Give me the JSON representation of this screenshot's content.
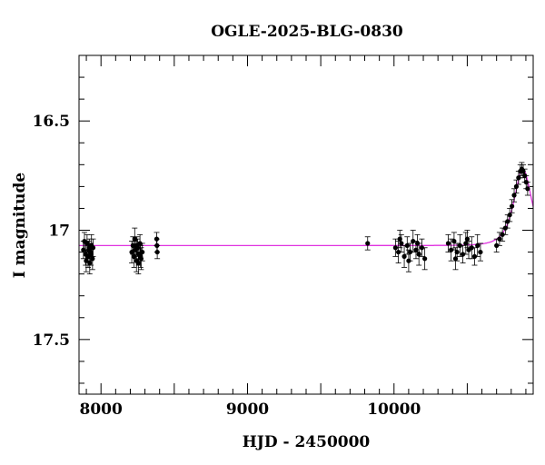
{
  "chart_data": {
    "type": "scatter",
    "title": "OGLE-2025-BLG-0830",
    "xlabel": "HJD - 2450000",
    "ylabel": "I magnitude",
    "xlim": [
      7850,
      10950
    ],
    "ylim": [
      17.75,
      16.2
    ],
    "y_inverted": true,
    "x_ticks": [
      8000,
      9000,
      10000
    ],
    "y_ticks": [
      16.5,
      17,
      17.5
    ],
    "colors": {
      "points": "#000000",
      "model": "#e033e0",
      "frame": "#000000"
    },
    "model": {
      "baseline": 17.07,
      "peak_mag": 16.72,
      "t0": 10880,
      "tE": 75
    },
    "series": [
      {
        "points": [
          {
            "x": 7880,
            "y": 17.09,
            "err": 0.04
          },
          {
            "x": 7895,
            "y": 17.11,
            "err": 0.05
          },
          {
            "x": 7905,
            "y": 17.06,
            "err": 0.04
          },
          {
            "x": 7912,
            "y": 17.12,
            "err": 0.05
          },
          {
            "x": 7920,
            "y": 17.08,
            "err": 0.04
          },
          {
            "x": 7928,
            "y": 17.1,
            "err": 0.04
          },
          {
            "x": 7935,
            "y": 17.07,
            "err": 0.05
          },
          {
            "x": 7942,
            "y": 17.13,
            "err": 0.05
          },
          {
            "x": 7887,
            "y": 17.05,
            "err": 0.04
          },
          {
            "x": 7899,
            "y": 17.14,
            "err": 0.05
          },
          {
            "x": 7916,
            "y": 17.09,
            "err": 0.04
          },
          {
            "x": 7931,
            "y": 17.11,
            "err": 0.05
          },
          {
            "x": 7946,
            "y": 17.08,
            "err": 0.04
          },
          {
            "x": 7923,
            "y": 17.15,
            "err": 0.05
          },
          {
            "x": 8210,
            "y": 17.1,
            "err": 0.05
          },
          {
            "x": 8218,
            "y": 17.07,
            "err": 0.04
          },
          {
            "x": 8226,
            "y": 17.12,
            "err": 0.05
          },
          {
            "x": 8234,
            "y": 17.09,
            "err": 0.04
          },
          {
            "x": 8242,
            "y": 17.14,
            "err": 0.05
          },
          {
            "x": 8250,
            "y": 17.08,
            "err": 0.04
          },
          {
            "x": 8258,
            "y": 17.11,
            "err": 0.05
          },
          {
            "x": 8266,
            "y": 17.06,
            "err": 0.04
          },
          {
            "x": 8274,
            "y": 17.13,
            "err": 0.05
          },
          {
            "x": 8282,
            "y": 17.1,
            "err": 0.04
          },
          {
            "x": 8230,
            "y": 17.04,
            "err": 0.05
          },
          {
            "x": 8255,
            "y": 17.15,
            "err": 0.05
          },
          {
            "x": 8270,
            "y": 17.12,
            "err": 0.05
          },
          {
            "x": 8245,
            "y": 17.07,
            "err": 0.04
          },
          {
            "x": 8380,
            "y": 17.04,
            "err": 0.03
          },
          {
            "x": 8382,
            "y": 17.07,
            "err": 0.03
          },
          {
            "x": 8384,
            "y": 17.1,
            "err": 0.03
          },
          {
            "x": 9820,
            "y": 17.06,
            "err": 0.03
          },
          {
            "x": 10010,
            "y": 17.08,
            "err": 0.04
          },
          {
            "x": 10030,
            "y": 17.1,
            "err": 0.05
          },
          {
            "x": 10050,
            "y": 17.06,
            "err": 0.04
          },
          {
            "x": 10070,
            "y": 17.12,
            "err": 0.05
          },
          {
            "x": 10090,
            "y": 17.07,
            "err": 0.04
          },
          {
            "x": 10110,
            "y": 17.1,
            "err": 0.04
          },
          {
            "x": 10130,
            "y": 17.05,
            "err": 0.05
          },
          {
            "x": 10150,
            "y": 17.09,
            "err": 0.04
          },
          {
            "x": 10170,
            "y": 17.11,
            "err": 0.05
          },
          {
            "x": 10190,
            "y": 17.08,
            "err": 0.04
          },
          {
            "x": 10210,
            "y": 17.13,
            "err": 0.05
          },
          {
            "x": 10040,
            "y": 17.04,
            "err": 0.04
          },
          {
            "x": 10100,
            "y": 17.14,
            "err": 0.05
          },
          {
            "x": 10160,
            "y": 17.06,
            "err": 0.04
          },
          {
            "x": 10370,
            "y": 17.06,
            "err": 0.04
          },
          {
            "x": 10390,
            "y": 17.09,
            "err": 0.05
          },
          {
            "x": 10410,
            "y": 17.05,
            "err": 0.04
          },
          {
            "x": 10430,
            "y": 17.1,
            "err": 0.04
          },
          {
            "x": 10450,
            "y": 17.07,
            "err": 0.05
          },
          {
            "x": 10470,
            "y": 17.11,
            "err": 0.04
          },
          {
            "x": 10490,
            "y": 17.06,
            "err": 0.05
          },
          {
            "x": 10510,
            "y": 17.09,
            "err": 0.04
          },
          {
            "x": 10530,
            "y": 17.08,
            "err": 0.05
          },
          {
            "x": 10550,
            "y": 17.12,
            "err": 0.04
          },
          {
            "x": 10570,
            "y": 17.07,
            "err": 0.05
          },
          {
            "x": 10590,
            "y": 17.1,
            "err": 0.04
          },
          {
            "x": 10420,
            "y": 17.13,
            "err": 0.05
          },
          {
            "x": 10500,
            "y": 17.04,
            "err": 0.04
          },
          {
            "x": 10700,
            "y": 17.07,
            "err": 0.03
          },
          {
            "x": 10720,
            "y": 17.04,
            "err": 0.03
          },
          {
            "x": 10740,
            "y": 17.02,
            "err": 0.03
          },
          {
            "x": 10760,
            "y": 16.99,
            "err": 0.03
          },
          {
            "x": 10775,
            "y": 16.96,
            "err": 0.03
          },
          {
            "x": 10790,
            "y": 16.93,
            "err": 0.03
          },
          {
            "x": 10805,
            "y": 16.89,
            "err": 0.03
          },
          {
            "x": 10820,
            "y": 16.84,
            "err": 0.03
          },
          {
            "x": 10835,
            "y": 16.8,
            "err": 0.03
          },
          {
            "x": 10850,
            "y": 16.76,
            "err": 0.03
          },
          {
            "x": 10862,
            "y": 16.73,
            "err": 0.03
          },
          {
            "x": 10872,
            "y": 16.72,
            "err": 0.03
          },
          {
            "x": 10882,
            "y": 16.73,
            "err": 0.03
          },
          {
            "x": 10892,
            "y": 16.75,
            "err": 0.03
          },
          {
            "x": 10902,
            "y": 16.78,
            "err": 0.03
          },
          {
            "x": 10912,
            "y": 16.81,
            "err": 0.03
          }
        ]
      }
    ]
  }
}
